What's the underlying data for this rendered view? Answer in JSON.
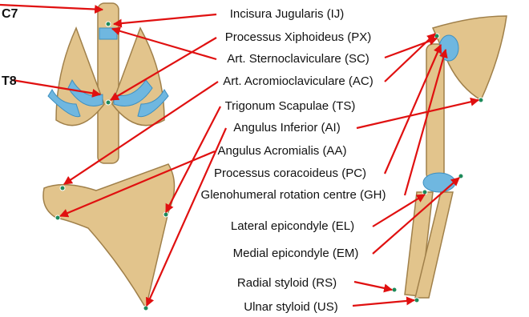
{
  "vertebrae": [
    "C7",
    "T8"
  ],
  "landmarks": [
    "Incisura Jugularis (IJ)",
    "Processus Xiphoideus (PX)",
    "Art. Sternoclaviculare (SC)",
    "Art. Acromioclaviculare (AC)",
    "Trigonum Scapulae (TS)",
    "Angulus Inferior (AI)",
    "Angulus Acromialis (AA)",
    "Processus coracoideus (PC)",
    "Glenohumeral rotation centre (GH)",
    "Lateral epicondyle (EL)",
    "Medial epicondyle (EM)",
    "Radial styloid (RS)",
    "Ulnar styloid (US)"
  ]
}
